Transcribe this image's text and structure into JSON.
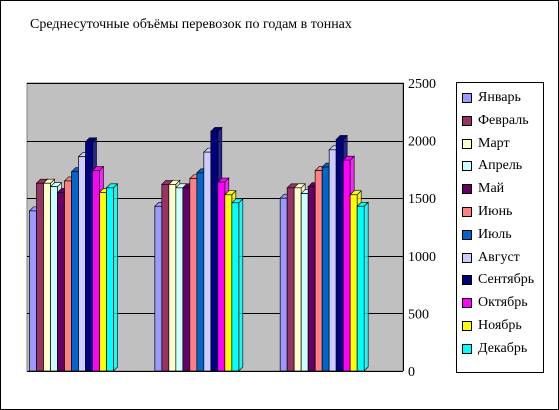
{
  "chart_data": {
    "type": "bar",
    "title": "Среднесуточные объёмы перевозок по годам в тоннах",
    "xlabel": "",
    "ylabel": "",
    "ylim": [
      0,
      2500
    ],
    "yticks": [
      0,
      500,
      1000,
      1500,
      2000,
      2500
    ],
    "ytick_labels": [
      "0",
      "500",
      "1000",
      "1500",
      "2000",
      "2500"
    ],
    "y_axis_side": "right",
    "grid": "horizontal",
    "plot_background": "#c0c0c0",
    "legend_position": "right",
    "categories": [
      "",
      "",
      ""
    ],
    "series": [
      {
        "name": "Январь",
        "color": "#9999ff",
        "values": [
          1390,
          1430,
          1500
        ]
      },
      {
        "name": "Февраль",
        "color": "#993366",
        "values": [
          1630,
          1620,
          1590
        ]
      },
      {
        "name": "Март",
        "color": "#ffffcc",
        "values": [
          1630,
          1620,
          1590
        ]
      },
      {
        "name": "Апрель",
        "color": "#ccffff",
        "values": [
          1600,
          1590,
          1540
        ]
      },
      {
        "name": "Май",
        "color": "#660066",
        "values": [
          1550,
          1590,
          1600
        ]
      },
      {
        "name": "Июнь",
        "color": "#ff8080",
        "values": [
          1650,
          1670,
          1740
        ]
      },
      {
        "name": "Июль",
        "color": "#0066cc",
        "values": [
          1730,
          1720,
          1770
        ]
      },
      {
        "name": "Август",
        "color": "#ccccff",
        "values": [
          1860,
          1900,
          1920
        ]
      },
      {
        "name": "Сентябрь",
        "color": "#000080",
        "values": [
          1990,
          2080,
          2010
        ]
      },
      {
        "name": "Октябрь",
        "color": "#ff00ff",
        "values": [
          1740,
          1640,
          1830
        ]
      },
      {
        "name": "Ноябрь",
        "color": "#ffff00",
        "values": [
          1550,
          1530,
          1530
        ]
      },
      {
        "name": "Декабрь",
        "color": "#00ffff",
        "values": [
          1590,
          1460,
          1430
        ]
      }
    ]
  }
}
